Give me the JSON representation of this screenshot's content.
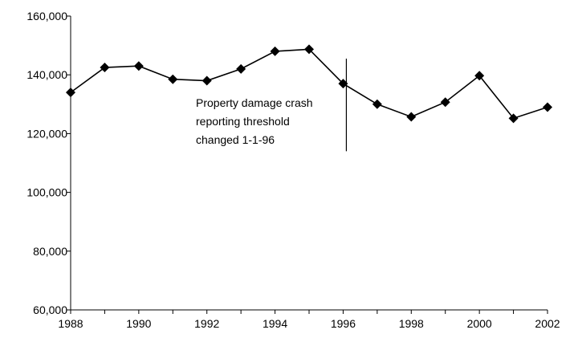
{
  "chart_data": {
    "type": "line",
    "x": [
      1988,
      1989,
      1990,
      1991,
      1992,
      1993,
      1994,
      1995,
      1996,
      1997,
      1998,
      1999,
      2000,
      2001,
      2002
    ],
    "series": [
      {
        "values": [
          134000,
          142500,
          143000,
          138500,
          138000,
          142000,
          148000,
          148700,
          137000,
          130000,
          125700,
          130700,
          139700,
          125200,
          129000
        ]
      }
    ],
    "xlim": [
      1988,
      2002
    ],
    "ylim": [
      60000,
      160000
    ],
    "x_ticks": [
      1988,
      1990,
      1992,
      1994,
      1996,
      1998,
      2000,
      2002
    ],
    "x_tick_labels": [
      "1988",
      "1990",
      "1992",
      "1994",
      "1996",
      "1998",
      "2000",
      "2002"
    ],
    "y_ticks": [
      60000,
      80000,
      100000,
      120000,
      140000,
      160000
    ],
    "y_tick_labels": [
      "60,000",
      "80,000",
      "100,000",
      "120,000",
      "140,000",
      "160,000"
    ],
    "grid": false,
    "legend": "none",
    "marker": "diamond",
    "line_color": "#000000",
    "annotation": {
      "lines": [
        "Property damage crash",
        "reporting threshold",
        "changed 1-1-96"
      ],
      "x": 1996,
      "y_range": [
        114000,
        145500
      ]
    }
  }
}
